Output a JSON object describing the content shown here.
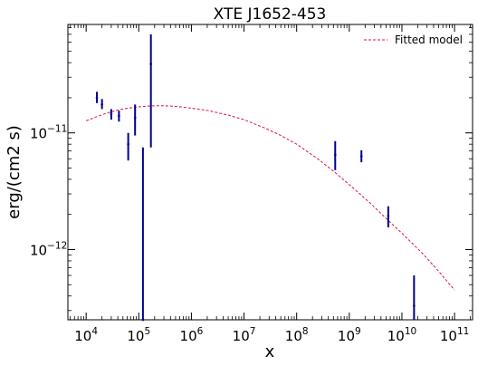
{
  "chart_data": {
    "type": "scatter",
    "title": "XTE J1652-453",
    "xlabel": "x",
    "ylabel": "erg/(cm2 s)",
    "xscale": "log",
    "yscale": "log",
    "xlim": [
      4500,
      220000000000.0
    ],
    "ylim": [
      2.5e-13,
      8.5e-11
    ],
    "grid": false,
    "legend": {
      "placement": "top-right",
      "entries": [
        "Fitted model"
      ]
    },
    "x_ticks": [
      {
        "base": "10",
        "exp": "4",
        "value": 10000.0
      },
      {
        "base": "10",
        "exp": "5",
        "value": 100000.0
      },
      {
        "base": "10",
        "exp": "6",
        "value": 1000000.0
      },
      {
        "base": "10",
        "exp": "7",
        "value": 10000000.0
      },
      {
        "base": "10",
        "exp": "8",
        "value": 100000000.0
      },
      {
        "base": "10",
        "exp": "9",
        "value": 1000000000.0
      },
      {
        "base": "10",
        "exp": "10",
        "value": 10000000000.0
      },
      {
        "base": "10",
        "exp": "11",
        "value": 100000000000.0
      }
    ],
    "y_ticks": [
      {
        "base": "10",
        "exp": "−12",
        "value": 1e-12
      },
      {
        "base": "10",
        "exp": "−11",
        "value": 1e-11
      }
    ],
    "series": [
      {
        "name": "Fitted model",
        "kind": "line",
        "style": "dashed",
        "color": "#dc143c",
        "points": [
          [
            10000.0,
            1.27e-11
          ],
          [
            16000.0,
            1.38e-11
          ],
          [
            25000.0,
            1.48e-11
          ],
          [
            40000.0,
            1.57e-11
          ],
          [
            63000.0,
            1.63e-11
          ],
          [
            100000.0,
            1.67e-11
          ],
          [
            160000.0,
            1.7e-11
          ],
          [
            250000.0,
            1.71e-11
          ],
          [
            400000.0,
            1.7e-11
          ],
          [
            630000.0,
            1.67e-11
          ],
          [
            1000000.0,
            1.63e-11
          ],
          [
            2000000.0,
            1.56e-11
          ],
          [
            5000000.0,
            1.42e-11
          ],
          [
            10000000.0,
            1.3e-11
          ],
          [
            25000000.0,
            1.1e-11
          ],
          [
            50000000.0,
            9.5e-12
          ],
          [
            100000000.0,
            8e-12
          ],
          [
            250000000.0,
            6e-12
          ],
          [
            500000000.0,
            4.7e-12
          ],
          [
            1000000000.0,
            3.6e-12
          ],
          [
            2500000000.0,
            2.5e-12
          ],
          [
            5000000000.0,
            1.85e-12
          ],
          [
            10000000000.0,
            1.38e-12
          ],
          [
            25000000000.0,
            9.2e-13
          ],
          [
            50000000000.0,
            6.5e-13
          ],
          [
            100000000000.0,
            4.5e-13
          ]
        ]
      },
      {
        "name": "",
        "kind": "errorbar",
        "color": "#00008b",
        "points": [
          {
            "x": 16000.0,
            "y": 2e-11,
            "ylo": 1.8e-11,
            "yhi": 2.25e-11
          },
          {
            "x": 20000.0,
            "y": 1.75e-11,
            "ylo": 1.6e-11,
            "yhi": 1.95e-11
          },
          {
            "x": 30000.0,
            "y": 1.45e-11,
            "ylo": 1.3e-11,
            "yhi": 1.6e-11
          },
          {
            "x": 42000.0,
            "y": 1.4e-11,
            "ylo": 1.25e-11,
            "yhi": 1.55e-11
          },
          {
            "x": 63000.0,
            "y": 8e-12,
            "ylo": 5.8e-12,
            "yhi": 1e-11
          },
          {
            "x": 85000.0,
            "y": 1.35e-11,
            "ylo": 9.5e-12,
            "yhi": 1.75e-11
          },
          {
            "x": 120000.0,
            "y": 2.5e-13,
            "ylo": 2.5e-13,
            "yhi": 7.5e-12
          },
          {
            "x": 170000.0,
            "y": 3.9e-11,
            "ylo": 7.5e-12,
            "yhi": 7e-11
          },
          {
            "x": 540000000.0,
            "y": 6.5e-12,
            "ylo": 4.8e-12,
            "yhi": 8.5e-12
          },
          {
            "x": 1700000000.0,
            "y": 6.3e-12,
            "ylo": 5.6e-12,
            "yhi": 7.1e-12
          },
          {
            "x": 5500000000.0,
            "y": 1.95e-12,
            "ylo": 1.55e-12,
            "yhi": 2.35e-12
          },
          {
            "x": 17000000000.0,
            "y": 3.3e-13,
            "ylo": 2.5e-13,
            "yhi": 6e-13
          }
        ]
      }
    ]
  }
}
